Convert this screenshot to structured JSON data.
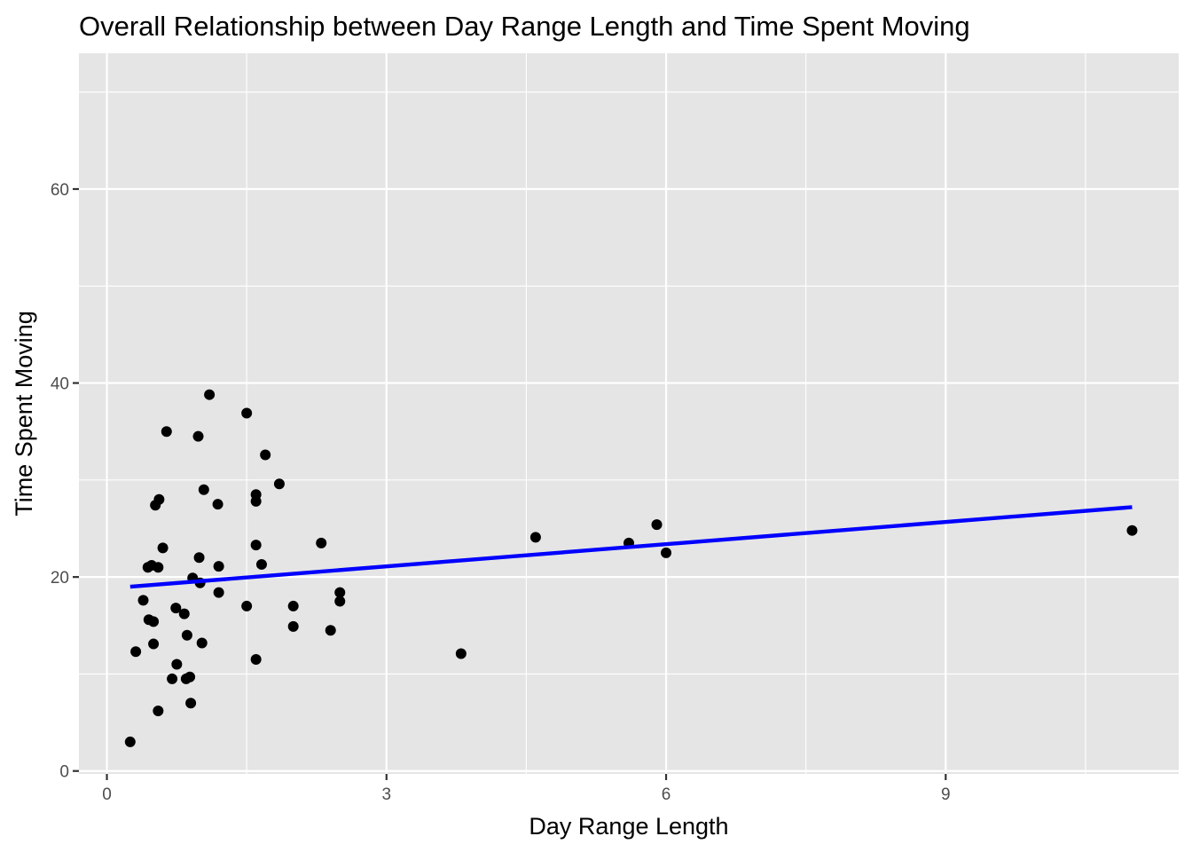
{
  "chart_data": {
    "type": "scatter",
    "title": "Overall Relationship between Day Range Length and Time Spent Moving",
    "xlabel": "Day Range Length",
    "ylabel": "Time Spent Moving",
    "xlim": [
      -0.3,
      11.5
    ],
    "ylim": [
      -0.3,
      74
    ],
    "x_ticks": [
      0,
      3,
      6,
      9
    ],
    "x_tick_labels": [
      "0",
      "3",
      "6",
      "9"
    ],
    "y_ticks": [
      0,
      20,
      40,
      60
    ],
    "y_tick_labels": [
      "0",
      "20",
      "40",
      "60"
    ],
    "grid": true,
    "legend": "none",
    "panel_background": "#e5e5e5",
    "grid_color": "#ffffff",
    "point_color": "#000000",
    "line_color": "#0000ff",
    "series": [
      {
        "type": "scatter",
        "x": [
          0.25,
          0.31,
          0.39,
          0.44,
          0.45,
          0.48,
          0.5,
          0.5,
          0.52,
          0.55,
          0.55,
          0.56,
          0.6,
          0.64,
          0.7,
          0.74,
          0.75,
          0.83,
          0.85,
          0.86,
          0.89,
          0.9,
          0.92,
          0.98,
          0.99,
          1.0,
          1.02,
          1.04,
          1.1,
          1.19,
          1.2,
          1.2,
          1.5,
          1.5,
          1.6,
          1.6,
          1.6,
          1.6,
          1.66,
          1.7,
          1.85,
          2.0,
          2.0,
          2.3,
          2.4,
          2.5,
          2.5,
          3.8,
          4.6,
          5.6,
          5.9,
          6.0,
          11.0
        ],
        "y": [
          3.0,
          12.3,
          17.6,
          21.0,
          15.6,
          21.2,
          13.1,
          15.4,
          27.4,
          6.2,
          21.0,
          28.0,
          23.0,
          35.0,
          9.5,
          16.8,
          11.0,
          16.2,
          9.5,
          14.0,
          9.7,
          7.0,
          19.9,
          34.5,
          22.0,
          19.4,
          13.2,
          29.0,
          38.8,
          27.5,
          21.1,
          18.4,
          17.0,
          36.9,
          11.5,
          23.3,
          27.8,
          28.5,
          21.3,
          32.6,
          29.6,
          14.9,
          17.0,
          23.5,
          14.5,
          17.5,
          18.4,
          12.1,
          24.1,
          23.5,
          25.4,
          22.5,
          24.8
        ]
      },
      {
        "type": "line",
        "x": [
          0.25,
          11.0
        ],
        "y": [
          19.0,
          27.2
        ]
      }
    ]
  }
}
